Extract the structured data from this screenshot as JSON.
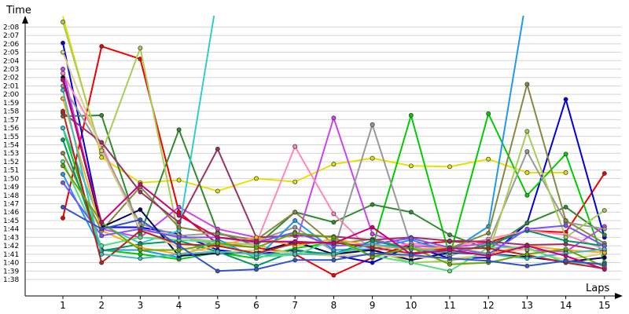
{
  "chart_data": {
    "type": "line",
    "xlabel": "Laps",
    "ylabel": "Time",
    "x_ticks": [
      "1",
      "2",
      "3",
      "4",
      "5",
      "6",
      "7",
      "8",
      "9",
      "10",
      "11",
      "12",
      "13",
      "14",
      "15"
    ],
    "y_ticks": [
      "1:38",
      "1:39",
      "1:40",
      "1:41",
      "1:42",
      "1:43",
      "1:44",
      "1:45",
      "1:46",
      "1:47",
      "1:48",
      "1:49",
      "1:50",
      "1:51",
      "1:52",
      "1:53",
      "1:54",
      "1:55",
      "1:56",
      "1:57",
      "1:58",
      "1:59",
      "2:00",
      "2:01",
      "2:02",
      "2:03",
      "2:04",
      "2:05",
      "2:06",
      "2:07",
      "2:08"
    ],
    "y_unit": "seconds",
    "ylim": [
      97,
      129
    ],
    "grid": true,
    "series": [
      {
        "color": "#e8e000",
        "values": [
          129.3,
          112.5,
          109.5,
          109.8,
          108.5,
          110.0,
          109.6,
          111.7,
          112.4,
          111.5,
          111.4,
          112.3,
          110.7,
          110.7,
          null
        ]
      },
      {
        "color": "#ee0000",
        "values": [
          105.3,
          125.7,
          124.2,
          106.0,
          102.2,
          101.8,
          101.0,
          98.5,
          100.6,
          102.2,
          102.5,
          102.4,
          103.8,
          103.6,
          110.6
        ]
      },
      {
        "color": "#0000dd",
        "values": [
          126.1,
          104.2,
          104.2,
          103.4,
          101.5,
          101.0,
          101.5,
          100.9,
          100.0,
          102.0,
          100.5,
          100.6,
          104.7,
          119.4,
          103.0
        ]
      },
      {
        "color": "#00cc00",
        "values": [
          116.0,
          101.5,
          101.0,
          100.4,
          101.2,
          100.5,
          101.7,
          102.4,
          101.8,
          117.5,
          100.8,
          117.7,
          108.0,
          112.9,
          100.0
        ]
      },
      {
        "color": "#2e8b2e",
        "values": [
          117.4,
          117.5,
          103.4,
          115.8,
          103.6,
          102.0,
          106.0,
          104.8,
          106.9,
          106.0,
          103.3,
          101.6,
          104.7,
          106.6,
          103.3
        ]
      },
      {
        "color": "#cc44ee",
        "values": [
          123.0,
          104.0,
          103.0,
          106.6,
          104.0,
          103.0,
          102.0,
          117.2,
          103.4,
          102.0,
          101.8,
          102.3,
          101.5,
          101.3,
          104.3
        ]
      },
      {
        "color": "#ff88bb",
        "values": [
          122.5,
          114.0,
          103.8,
          103.2,
          102.0,
          102.3,
          113.8,
          105.8,
          101.3,
          102.3,
          101.8,
          102.8,
          103.8,
          103.3,
          101.6
        ]
      },
      {
        "color": "#999999",
        "values": [
          121.0,
          113.5,
          104.6,
          103.2,
          103.5,
          102.6,
          104.2,
          101.4,
          116.4,
          102.0,
          100.8,
          102.3,
          113.2,
          104.8,
          104.0
        ]
      },
      {
        "color": "#aacc55",
        "values": [
          128.6,
          113.0,
          125.5,
          103.0,
          102.5,
          102.1,
          101.0,
          101.2,
          101.5,
          100.0,
          100.2,
          101.0,
          115.6,
          103.0,
          106.2
        ]
      },
      {
        "color": "#33cccc",
        "values": [
          116.0,
          104.5,
          102.3,
          103.8,
          132.0,
          null,
          null,
          null,
          null,
          null,
          null,
          null,
          null,
          null,
          null
        ]
      },
      {
        "color": "#2299ee",
        "values": [
          110.5,
          101.5,
          101.5,
          100.6,
          102.8,
          100.5,
          105.0,
          101.5,
          101.6,
          102.7,
          101.3,
          104.3,
          132.0,
          null,
          null
        ]
      },
      {
        "color": "#888844",
        "values": [
          113.0,
          103.8,
          109.0,
          104.2,
          103.4,
          102.7,
          106.0,
          102.2,
          102.8,
          101.6,
          101.7,
          103.5,
          121.2,
          105.0,
          102.3
        ]
      },
      {
        "color": "#993366",
        "values": [
          117.8,
          114.3,
          108.4,
          104.8,
          113.5,
          103.0,
          103.2,
          103.1,
          102.7,
          103.0,
          102.6,
          102.5,
          102.1,
          102.2,
          101.4
        ]
      },
      {
        "color": "#000055",
        "values": [
          122.0,
          104.2,
          106.3,
          100.8,
          101.1,
          101.2,
          102.5,
          101.0,
          101.5,
          100.3,
          101.2,
          101.0,
          100.7,
          100.1,
          100.6
        ]
      },
      {
        "color": "#009966",
        "values": [
          114.6,
          101.4,
          102.2,
          102.6,
          101.3,
          99.6,
          101.4,
          101.0,
          102.6,
          101.6,
          101.2,
          102.1,
          103.8,
          102.6,
          102.0
        ]
      },
      {
        "color": "#ddcc88",
        "values": [
          125.0,
          113.3,
          104.0,
          101.8,
          101.2,
          101.5,
          101.1,
          100.8,
          100.9,
          100.7,
          100.5,
          100.9,
          101.6,
          100.3,
          101.1
        ]
      },
      {
        "color": "#ffaa22",
        "values": [
          119.5,
          103.8,
          101.8,
          101.0,
          102.0,
          103.0,
          102.0,
          102.8,
          102.0,
          101.6,
          101.8,
          101.1,
          102.0,
          101.5,
          101.2
        ]
      },
      {
        "color": "#55dd88",
        "values": [
          112.0,
          102.0,
          103.0,
          102.7,
          102.4,
          100.7,
          100.9,
          102.7,
          100.8,
          100.0,
          99.0,
          101.8,
          101.8,
          100.0,
          99.8
        ]
      },
      {
        "color": "#7755ff",
        "values": [
          109.5,
          103.2,
          104.0,
          103.0,
          103.0,
          102.4,
          103.6,
          102.0,
          102.2,
          102.9,
          101.8,
          101.0,
          104.0,
          104.4,
          102.0
        ]
      },
      {
        "color": "#bb2222",
        "values": [
          118.0,
          100.0,
          103.8,
          102.2,
          102.0,
          101.1,
          102.3,
          102.4,
          101.8,
          101.1,
          101.7,
          101.7,
          100.9,
          100.0,
          99.3
        ]
      },
      {
        "color": "#44bbbb",
        "values": [
          120.5,
          101.0,
          100.5,
          101.0,
          101.3,
          101.0,
          101.0,
          101.0,
          102.2,
          101.6,
          101.3,
          101.0,
          100.5,
          101.1,
          101.6
        ]
      },
      {
        "color": "#66aa00",
        "values": [
          111.5,
          104.8,
          101.5,
          101.5,
          102.3,
          101.8,
          103.5,
          103.0,
          100.7,
          101.8,
          99.8,
          100.0,
          101.0,
          101.6,
          99.5
        ]
      },
      {
        "color": "#cc0077",
        "values": [
          121.7,
          104.8,
          109.3,
          105.6,
          103.0,
          102.5,
          102.5,
          102.3,
          104.2,
          101.0,
          101.5,
          100.8,
          102.0,
          100.8,
          99.2
        ]
      },
      {
        "color": "#3355cc",
        "values": [
          106.6,
          104.0,
          105.1,
          102.0,
          99.0,
          99.2,
          100.3,
          100.3,
          101.1,
          100.9,
          100.5,
          100.2,
          99.6,
          100.2,
          99.8
        ]
      }
    ]
  }
}
